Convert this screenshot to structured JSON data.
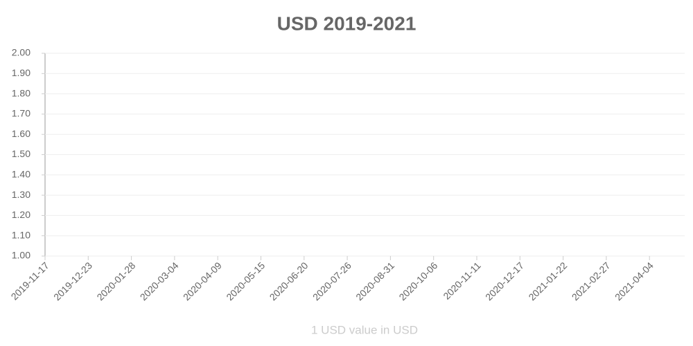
{
  "chart_data": {
    "type": "line",
    "title": "USD 2019-2021",
    "x_label": "1 USD value in USD",
    "categories": [
      "2019-11-17",
      "2019-12-23",
      "2020-01-28",
      "2020-03-04",
      "2020-04-09",
      "2020-05-15",
      "2020-06-20",
      "2020-07-26",
      "2020-08-31",
      "2020-10-06",
      "2020-11-11",
      "2020-12-17",
      "2021-01-22",
      "2021-02-27",
      "2021-04-04"
    ],
    "ylim": [
      1,
      2
    ],
    "yticks": [
      {
        "value": 1,
        "label": "1.00"
      },
      {
        "value": 1.1,
        "label": "1.10"
      },
      {
        "value": 1.2,
        "label": "1.20"
      },
      {
        "value": 1.3,
        "label": "1.30"
      },
      {
        "value": 1.4,
        "label": "1.40"
      },
      {
        "value": 1.5,
        "label": "1.50"
      },
      {
        "value": 1.6,
        "label": "1.60"
      },
      {
        "value": 1.7,
        "label": "1.70"
      },
      {
        "value": 1.8,
        "label": "1.80"
      },
      {
        "value": 1.9,
        "label": "1.90"
      },
      {
        "value": 2,
        "label": "2.00"
      }
    ],
    "grid": true
  }
}
